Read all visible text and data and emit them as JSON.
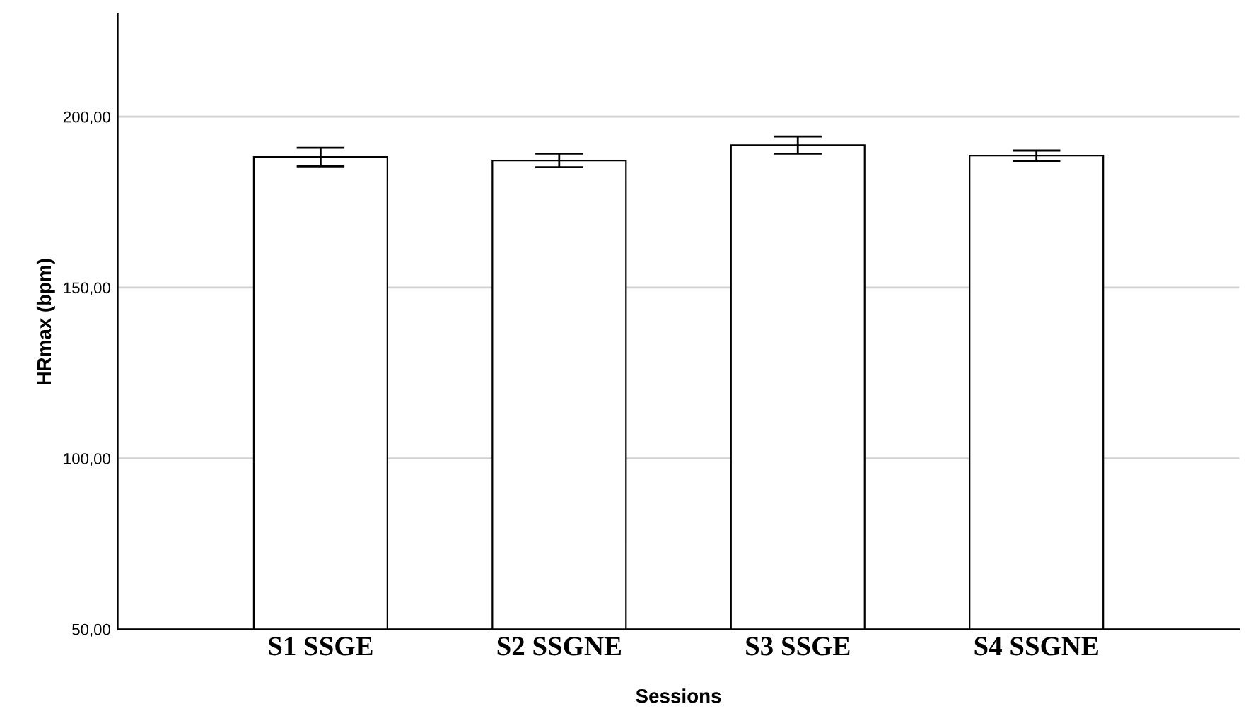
{
  "chart_data": {
    "type": "bar",
    "xlabel": "Sessions",
    "ylabel": "HRmax (bpm)",
    "categories": [
      "S1 SSGE",
      "S2 SSGNE",
      "S3 SSGE",
      "S4 SSGNE"
    ],
    "values": [
      188.2,
      187.2,
      191.7,
      188.6
    ],
    "errors": [
      2.7,
      2.0,
      2.5,
      1.5
    ],
    "colors": [
      "#ffffff",
      "#ffffff",
      "#ffffff",
      "#ffffff"
    ],
    "ylim": [
      50,
      230
    ],
    "yticks": [
      {
        "value": 50,
        "label": "50,00"
      },
      {
        "value": 100,
        "label": "100,00"
      },
      {
        "value": 150,
        "label": "150,00"
      },
      {
        "value": 200,
        "label": "200,00"
      }
    ],
    "grid": "y"
  }
}
